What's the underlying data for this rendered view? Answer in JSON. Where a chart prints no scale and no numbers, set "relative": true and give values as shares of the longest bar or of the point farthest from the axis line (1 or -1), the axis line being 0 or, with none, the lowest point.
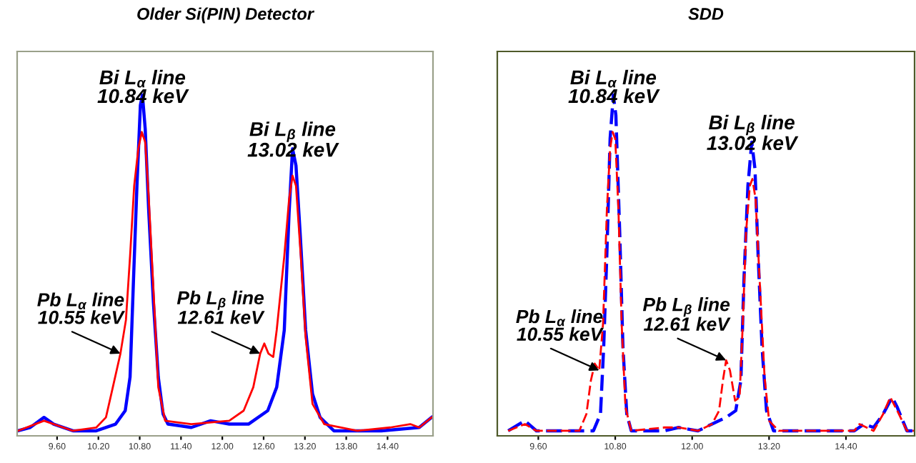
{
  "chart_data": [
    {
      "type": "line",
      "title": "Older Si(PIN) Detector",
      "relative": true,
      "xlim": [
        9.02,
        15.06
      ],
      "xticks": [
        {
          "value": 9.6,
          "label": "9.60"
        },
        {
          "value": 10.2,
          "label": "10.20"
        },
        {
          "value": 10.8,
          "label": "10.80"
        },
        {
          "value": 11.4,
          "label": "11.40"
        },
        {
          "value": 12.0,
          "label": "12.00"
        },
        {
          "value": 12.6,
          "label": "12.60"
        },
        {
          "value": 13.2,
          "label": "13.20"
        },
        {
          "value": 13.8,
          "label": "13.80"
        },
        {
          "value": 14.4,
          "label": "14.40"
        }
      ],
      "series": [
        {
          "color": "#0000ff",
          "line_style": "solid",
          "x": [
            9.03,
            9.21,
            9.41,
            9.55,
            9.83,
            10.17,
            10.45,
            10.59,
            10.66,
            10.71,
            10.76,
            10.81,
            10.84,
            10.88,
            10.93,
            11.0,
            11.07,
            11.14,
            11.21,
            11.55,
            11.83,
            12.1,
            12.38,
            12.66,
            12.79,
            12.9,
            12.97,
            13.02,
            13.07,
            13.13,
            13.21,
            13.31,
            13.42,
            13.62,
            14.31,
            14.86,
            15.04
          ],
          "values": [
            0,
            0.01,
            0.04,
            0.02,
            0,
            0,
            0.02,
            0.06,
            0.16,
            0.45,
            0.73,
            0.97,
            1.0,
            0.9,
            0.66,
            0.38,
            0.16,
            0.05,
            0.02,
            0.01,
            0.03,
            0.02,
            0.02,
            0.06,
            0.13,
            0.3,
            0.65,
            0.84,
            0.79,
            0.59,
            0.3,
            0.11,
            0.04,
            0,
            0,
            0.01,
            0.04
          ]
        },
        {
          "color": "#ff0000",
          "line_style": "solid",
          "x": [
            9.03,
            9.41,
            9.83,
            10.17,
            10.31,
            10.41,
            10.52,
            10.6,
            10.66,
            10.72,
            10.78,
            10.83,
            10.88,
            10.93,
            11.0,
            11.07,
            11.17,
            11.55,
            12.1,
            12.31,
            12.45,
            12.55,
            12.61,
            12.67,
            12.74,
            12.79,
            12.9,
            12.97,
            13.02,
            13.07,
            13.14,
            13.21,
            13.31,
            13.48,
            13.96,
            14.44,
            14.73,
            14.86,
            15.04
          ],
          "values": [
            0,
            0.03,
            0,
            0.01,
            0.04,
            0.13,
            0.23,
            0.33,
            0.52,
            0.73,
            0.84,
            0.89,
            0.86,
            0.7,
            0.42,
            0.13,
            0.03,
            0.02,
            0.03,
            0.06,
            0.13,
            0.23,
            0.26,
            0.23,
            0.22,
            0.3,
            0.52,
            0.69,
            0.76,
            0.73,
            0.52,
            0.28,
            0.08,
            0.02,
            0,
            0.01,
            0.02,
            0.01,
            0.04
          ]
        }
      ],
      "annotations": [
        {
          "text": "Bi L$_{α}$ line\n10.84 keV",
          "x": 10.84,
          "y": 1.0
        },
        {
          "text": "Bi L$_{β}$ line\n13.02 keV",
          "x": 13.02,
          "y": 0.84
        },
        {
          "text": "Pb L$_{α}$ line\n10.55 keV",
          "x": 10.52,
          "y": 0.23
        },
        {
          "text": "Pb L$_{β}$ line\n12.61 keV",
          "x": 12.55,
          "y": 0.23
        }
      ]
    },
    {
      "type": "line",
      "title": "SDD",
      "relative": true,
      "xlim": [
        8.96,
        15.47
      ],
      "xticks": [
        {
          "value": 9.6,
          "label": "9.60"
        },
        {
          "value": 10.8,
          "label": "10.80"
        },
        {
          "value": 12.0,
          "label": "12.00"
        },
        {
          "value": 13.2,
          "label": "13.20"
        },
        {
          "value": 14.4,
          "label": "14.40"
        }
      ],
      "series": [
        {
          "color": "#0000ff",
          "line_style": "dashed",
          "x": [
            9.13,
            9.39,
            9.57,
            10.24,
            10.46,
            10.57,
            10.62,
            10.67,
            10.72,
            10.77,
            10.81,
            10.87,
            10.92,
            10.98,
            11.05,
            11.57,
            11.79,
            12.09,
            12.31,
            12.53,
            12.68,
            12.76,
            12.81,
            12.87,
            12.93,
            12.98,
            13.03,
            13.09,
            13.16,
            13.27,
            13.94,
            14.53,
            14.68,
            14.83,
            14.98,
            15.12,
            15.2,
            15.35,
            15.46
          ],
          "values": [
            0,
            0.03,
            0,
            0,
            0,
            0.05,
            0.25,
            0.53,
            0.87,
            1.0,
            0.94,
            0.59,
            0.25,
            0.05,
            0,
            0,
            0.01,
            0,
            0.02,
            0.04,
            0.06,
            0.15,
            0.46,
            0.73,
            0.86,
            0.78,
            0.52,
            0.25,
            0.06,
            0,
            0,
            0,
            0.02,
            0.01,
            0.05,
            0.1,
            0.07,
            0,
            0
          ]
        },
        {
          "color": "#ff0000",
          "line_style": "dashed",
          "x": [
            9.13,
            9.39,
            9.57,
            10.24,
            10.35,
            10.42,
            10.48,
            10.55,
            10.61,
            10.67,
            10.72,
            10.76,
            10.8,
            10.85,
            10.9,
            10.96,
            11.05,
            11.57,
            11.79,
            12.09,
            12.31,
            12.42,
            12.48,
            12.53,
            12.59,
            12.67,
            12.74,
            12.79,
            12.84,
            12.9,
            12.94,
            12.99,
            13.05,
            13.13,
            13.2,
            13.35,
            13.94,
            14.53,
            14.61,
            14.72,
            14.83,
            14.98,
            15.09,
            15.2,
            15.35,
            15.46
          ],
          "values": [
            0,
            0.02,
            0,
            0,
            0.05,
            0.15,
            0.2,
            0.18,
            0.32,
            0.66,
            0.84,
            0.89,
            0.87,
            0.66,
            0.32,
            0.07,
            0,
            0.01,
            0.01,
            0,
            0.02,
            0.06,
            0.15,
            0.21,
            0.18,
            0.09,
            0.1,
            0.32,
            0.59,
            0.73,
            0.75,
            0.69,
            0.46,
            0.16,
            0.03,
            0,
            0,
            0,
            0.02,
            0.01,
            0,
            0.05,
            0.1,
            0.06,
            0,
            0
          ]
        }
      ],
      "annotations": [
        {
          "text": "Bi L$_{α}$ line\n10.84 keV",
          "x": 10.77,
          "y": 1.0
        },
        {
          "text": "Bi L$_{β}$ line\n13.02 keV",
          "x": 12.93,
          "y": 0.86
        },
        {
          "text": "Pb L$_{α}$ line\n10.55 keV",
          "x": 10.55,
          "y": 0.18
        },
        {
          "text": "Pb L$_{β}$ line\n12.61 keV",
          "x": 12.53,
          "y": 0.21
        }
      ]
    }
  ]
}
